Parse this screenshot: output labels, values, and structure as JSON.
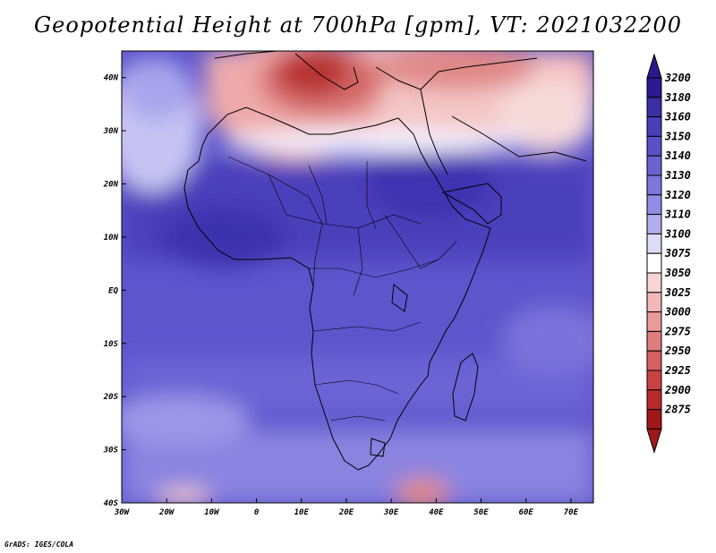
{
  "title": "Geopotential Height at 700hPa [gpm], VT: 2021032200",
  "footer": "GrADS: IGES/COLA",
  "map": {
    "lon_range": [
      -30,
      75
    ],
    "lat_range": [
      -40,
      45
    ],
    "x_ticks": [
      "30W",
      "20W",
      "10W",
      "0",
      "10E",
      "20E",
      "30E",
      "40E",
      "50E",
      "60E",
      "70E"
    ],
    "y_ticks": [
      "40N",
      "30N",
      "20N",
      "10N",
      "EQ",
      "10S",
      "20S",
      "30S",
      "40S"
    ]
  },
  "colorbar": {
    "labels": [
      "3200",
      "3180",
      "3160",
      "3150",
      "3140",
      "3130",
      "3120",
      "3110",
      "3100",
      "3075",
      "3050",
      "3025",
      "3000",
      "2975",
      "2950",
      "2925",
      "2900",
      "2875"
    ],
    "colors": [
      "#2a1a8f",
      "#3a2fa5",
      "#4a3fb8",
      "#5a50c8",
      "#6b62d2",
      "#7d76dd",
      "#918ce6",
      "#b2afef",
      "#dcdcf8",
      "#ffffff",
      "#f8d4d4",
      "#f2b8b8",
      "#e99a9a",
      "#e07d7d",
      "#d65f5f",
      "#c94343",
      "#b82a2a",
      "#a01818"
    ]
  }
}
